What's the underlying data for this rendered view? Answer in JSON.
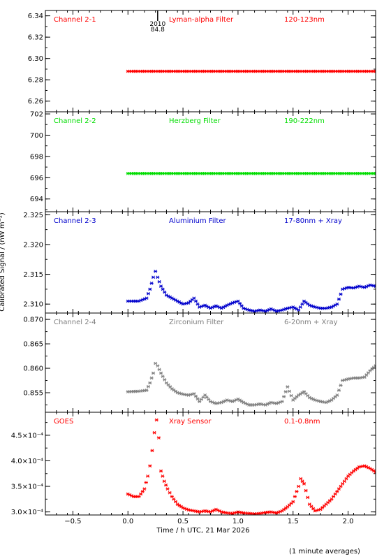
{
  "chart_data": {
    "type": "scatter",
    "x_axis": {
      "label": "Time / h UTC, 21 Mar 2026",
      "range": [
        -0.75,
        2.25
      ],
      "ticks": [
        -0.5,
        0.0,
        0.5,
        1.0,
        1.5,
        2.0
      ],
      "tick_labels": [
        "−0.5",
        "0.0",
        "0.5",
        "1.0",
        "1.5",
        "2.0"
      ]
    },
    "y_axis_label": "Calibrated Signal / (nW m⁻²)",
    "footnote": "(1 minute averages)",
    "marker": {
      "year": "2010",
      "value": "84.8",
      "x": 0.27
    },
    "panels": [
      {
        "channel": "Channel 2-1",
        "filter": "Lyman-alpha Filter",
        "band": "120-123nm",
        "color": "#ff0000",
        "ylim": [
          6.25,
          6.345
        ],
        "ticks": [
          6.26,
          6.28,
          6.3,
          6.32,
          6.34
        ],
        "tick_labels": [
          "6.26",
          "6.28",
          "6.30",
          "6.32",
          "6.34"
        ],
        "series": {
          "x": [
            0.0,
            2.25
          ],
          "y": [
            6.288,
            6.288
          ]
        }
      },
      {
        "channel": "Channel 2-2",
        "filter": "Herzberg Filter",
        "band": "190-222nm",
        "color": "#00dd00",
        "ylim": [
          692.8,
          702.2
        ],
        "ticks": [
          694,
          696,
          698,
          700,
          702
        ],
        "tick_labels": [
          "694",
          "696",
          "698",
          "700",
          "702"
        ],
        "series": {
          "x": [
            0.0,
            2.25
          ],
          "y": [
            696.4,
            696.4
          ]
        }
      },
      {
        "channel": "Channel 2-3",
        "filter": "Aluminium Filter",
        "band": "17-80nm + Xray",
        "color": "#0000cc",
        "ylim": [
          2.3085,
          2.3255
        ],
        "ticks": [
          2.31,
          2.315,
          2.32,
          2.325
        ],
        "tick_labels": [
          "2.310",
          "2.315",
          "2.320",
          "2.325"
        ],
        "series": {
          "x": [
            0.0,
            0.1,
            0.17,
            0.2,
            0.23,
            0.25,
            0.27,
            0.3,
            0.35,
            0.4,
            0.45,
            0.5,
            0.55,
            0.6,
            0.65,
            0.7,
            0.75,
            0.8,
            0.85,
            0.9,
            0.95,
            1.0,
            1.05,
            1.1,
            1.15,
            1.2,
            1.25,
            1.3,
            1.35,
            1.4,
            1.45,
            1.5,
            1.55,
            1.6,
            1.65,
            1.7,
            1.75,
            1.8,
            1.85,
            1.9,
            1.95,
            2.0,
            2.05,
            2.1,
            2.15,
            2.2,
            2.25
          ],
          "y": [
            2.3105,
            2.3105,
            2.311,
            2.3125,
            2.3145,
            2.3155,
            2.3145,
            2.313,
            2.3115,
            2.311,
            2.3105,
            2.31,
            2.3102,
            2.311,
            2.3095,
            2.3098,
            2.3093,
            2.3097,
            2.3093,
            2.3098,
            2.3102,
            2.3105,
            2.3093,
            2.309,
            2.3088,
            2.309,
            2.3088,
            2.3092,
            2.3088,
            2.309,
            2.3093,
            2.3095,
            2.309,
            2.3105,
            2.3098,
            2.3095,
            2.3093,
            2.3093,
            2.3095,
            2.31,
            2.3125,
            2.3128,
            2.3127,
            2.313,
            2.3128,
            2.3132,
            2.313
          ]
        }
      },
      {
        "channel": "Channel 2-4",
        "filter": "Zirconium Filter",
        "band": "6-20nm + Xray",
        "color": "#808080",
        "ylim": [
          0.851,
          0.8713
        ],
        "ticks": [
          0.855,
          0.86,
          0.865,
          0.87
        ],
        "tick_labels": [
          "0.855",
          "0.860",
          "0.865",
          "0.870"
        ],
        "series": {
          "x": [
            0.0,
            0.1,
            0.17,
            0.2,
            0.23,
            0.25,
            0.27,
            0.3,
            0.35,
            0.4,
            0.45,
            0.5,
            0.55,
            0.6,
            0.65,
            0.7,
            0.75,
            0.8,
            0.85,
            0.9,
            0.95,
            1.0,
            1.05,
            1.1,
            1.15,
            1.2,
            1.25,
            1.3,
            1.35,
            1.4,
            1.45,
            1.5,
            1.55,
            1.6,
            1.65,
            1.7,
            1.75,
            1.8,
            1.85,
            1.9,
            1.95,
            2.0,
            2.05,
            2.1,
            2.15,
            2.2,
            2.25
          ],
          "y": [
            0.8552,
            0.8553,
            0.8555,
            0.857,
            0.859,
            0.861,
            0.8605,
            0.859,
            0.857,
            0.8558,
            0.855,
            0.8547,
            0.8545,
            0.8548,
            0.8532,
            0.8545,
            0.8532,
            0.8528,
            0.853,
            0.8535,
            0.8532,
            0.8537,
            0.853,
            0.8525,
            0.8525,
            0.8527,
            0.8525,
            0.853,
            0.8528,
            0.8532,
            0.8562,
            0.8535,
            0.8545,
            0.8552,
            0.854,
            0.8535,
            0.8532,
            0.853,
            0.8535,
            0.8545,
            0.8575,
            0.8578,
            0.858,
            0.858,
            0.8582,
            0.8595,
            0.8605
          ]
        }
      },
      {
        "channel": "GOES",
        "filter": "Xray Sensor",
        "band": "0.1-0.8nm",
        "color": "#ff0000",
        "ylim": [
          0.000294,
          0.000495
        ],
        "ticks": [
          0.0003,
          0.00035,
          0.0004,
          0.00045
        ],
        "tick_labels": [
          "3.0×10⁻⁴",
          "3.5×10⁻⁴",
          "4.0×10⁻⁴",
          "4.5×10⁻⁴"
        ],
        "series": {
          "x": [
            0.0,
            0.05,
            0.1,
            0.15,
            0.18,
            0.2,
            0.22,
            0.24,
            0.26,
            0.28,
            0.3,
            0.33,
            0.36,
            0.4,
            0.45,
            0.5,
            0.55,
            0.6,
            0.65,
            0.7,
            0.75,
            0.8,
            0.85,
            0.9,
            0.95,
            1.0,
            1.05,
            1.1,
            1.15,
            1.2,
            1.25,
            1.3,
            1.35,
            1.4,
            1.45,
            1.5,
            1.55,
            1.57,
            1.6,
            1.65,
            1.7,
            1.75,
            1.8,
            1.85,
            1.9,
            1.95,
            2.0,
            2.05,
            2.1,
            2.15,
            2.2,
            2.25
          ],
          "y": [
            0.000335,
            0.00033,
            0.00033,
            0.000345,
            0.00037,
            0.00039,
            0.00042,
            0.000455,
            0.00048,
            0.000445,
            0.00038,
            0.00036,
            0.000345,
            0.00033,
            0.000315,
            0.000308,
            0.000304,
            0.000302,
            0.0003,
            0.000302,
            0.0003,
            0.000305,
            0.0003,
            0.000298,
            0.000297,
            0.0003,
            0.000298,
            0.000297,
            0.000296,
            0.000297,
            0.000299,
            0.0003,
            0.000298,
            0.000302,
            0.00031,
            0.00032,
            0.00035,
            0.000365,
            0.000355,
            0.000315,
            0.000302,
            0.000305,
            0.000315,
            0.000325,
            0.00034,
            0.000355,
            0.00037,
            0.00038,
            0.000388,
            0.00039,
            0.000385,
            0.000378
          ]
        }
      }
    ]
  }
}
